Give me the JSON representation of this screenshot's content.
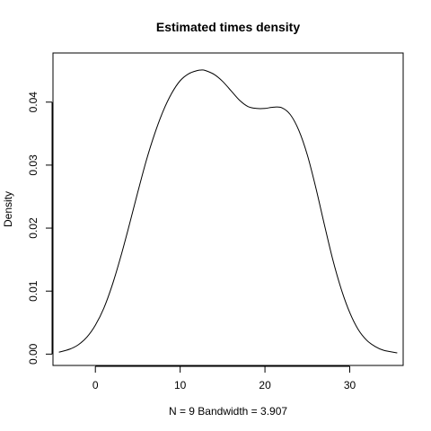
{
  "chart_data": {
    "type": "line",
    "title": "Estimated times density",
    "xlabel": "N = 9   Bandwidth = 3.907",
    "ylabel": "Density",
    "xlim": [
      -5.0,
      36.3
    ],
    "ylim": [
      -0.0018,
      0.0478
    ],
    "x_ticks": [
      0,
      10,
      20,
      30
    ],
    "x_tick_labels": [
      "0",
      "10",
      "20",
      "30"
    ],
    "y_ticks": [
      0.0,
      0.01,
      0.02,
      0.03,
      0.04
    ],
    "y_tick_labels": [
      "0.00",
      "0.01",
      "0.02",
      "0.03",
      "0.04"
    ],
    "grid": false,
    "legend": "none",
    "line_color": "#000000",
    "series": [
      {
        "x": [
          -4.3,
          -3,
          -2,
          -1,
          0,
          1,
          2,
          3,
          4,
          5,
          6,
          7,
          8,
          9,
          10,
          11,
          12,
          12.5,
          13,
          14,
          15,
          16,
          17,
          18,
          19,
          20,
          21,
          22,
          23,
          24,
          25,
          26,
          27,
          28,
          29,
          30,
          31,
          32,
          33,
          34,
          35.6
        ],
        "y": [
          0.0003,
          0.0008,
          0.0015,
          0.0027,
          0.0046,
          0.0073,
          0.011,
          0.0155,
          0.0205,
          0.0257,
          0.0307,
          0.035,
          0.0386,
          0.0414,
          0.0434,
          0.0445,
          0.045,
          0.0451,
          0.045,
          0.0444,
          0.0433,
          0.0418,
          0.0403,
          0.0393,
          0.039,
          0.039,
          0.0392,
          0.0391,
          0.038,
          0.0355,
          0.0316,
          0.0264,
          0.0206,
          0.015,
          0.0103,
          0.0066,
          0.0039,
          0.0022,
          0.0012,
          0.0006,
          0.0002
        ]
      }
    ]
  }
}
